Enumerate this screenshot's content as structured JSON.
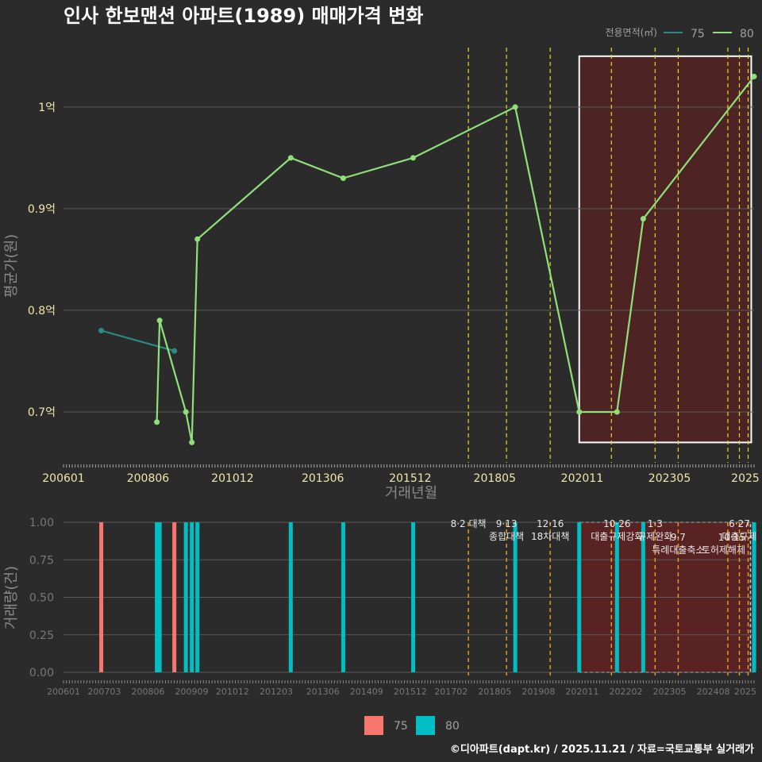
{
  "title": "인사 한보맨션 아파트(1989) 매매가격 변화",
  "caption": "©디아파트(dapt.kr) / 2025.11.21 / 자료=국토교통부 실거래가",
  "colors": {
    "background": "#2b2b2b",
    "series75_line": "#2a8a86",
    "series80_line": "#90e07a",
    "bar75": "#f8766d",
    "bar80": "#00bfc4",
    "highlight_fill": "#5a2222",
    "policy_yellow": "#e8d92a",
    "policy_orange": "#f0a020"
  },
  "chart_data": [
    {
      "type": "line",
      "title": "인사 한보맨션 아파트(1989) 매매가격 변화",
      "xlabel": "거래년월",
      "ylabel": "평균가(원)",
      "xlim": [
        2006.0,
        2025.75
      ],
      "ylim": [
        0.65,
        1.06
      ],
      "yunit": "억",
      "yticks": [
        0.7,
        0.8,
        0.9,
        1.0
      ],
      "ytick_labels": [
        "0.7억",
        "0.8억",
        "0.9억",
        "1억"
      ],
      "xtick_positions": [
        2006.0,
        2008.417,
        2010.833,
        2013.417,
        2015.917,
        2018.333,
        2020.833,
        2023.333,
        2025.5
      ],
      "xtick_labels": [
        "200601",
        "200806",
        "201012",
        "201306",
        "201512",
        "201805",
        "202011",
        "202305",
        "2025"
      ],
      "legend": {
        "title": "전용면적(㎡)",
        "position": "top-right",
        "entries": [
          "75",
          "80"
        ]
      },
      "series": [
        {
          "name": "75",
          "points": [
            [
              2007.08,
              0.78
            ],
            [
              2009.17,
              0.76
            ]
          ]
        },
        {
          "name": "80",
          "points": [
            [
              2008.67,
              0.69
            ],
            [
              2008.75,
              0.79
            ],
            [
              2009.5,
              0.7
            ],
            [
              2009.67,
              0.67
            ],
            [
              2009.83,
              0.87
            ],
            [
              2012.5,
              0.95
            ],
            [
              2014.0,
              0.93
            ],
            [
              2016.0,
              0.95
            ],
            [
              2018.92,
              1.0
            ],
            [
              2020.75,
              0.7
            ],
            [
              2021.83,
              0.7
            ],
            [
              2022.58,
              0.89
            ],
            [
              2025.75,
              1.03
            ]
          ]
        }
      ],
      "highlight_range": [
        2020.75,
        2025.67
      ],
      "policy_lines": [
        2017.58,
        2018.67,
        2019.92,
        2021.67,
        2022.92,
        2023.58,
        2025.0,
        2025.33,
        2025.58
      ]
    },
    {
      "type": "bar",
      "xlabel": "",
      "ylabel": "거래량(건)",
      "xlim": [
        2006.0,
        2025.75
      ],
      "ylim": [
        0,
        1
      ],
      "yticks": [
        0.0,
        0.25,
        0.5,
        0.75,
        1.0
      ],
      "ytick_labels": [
        "0.00",
        "0.25",
        "0.50",
        "0.75",
        "1.00"
      ],
      "xtick_positions": [
        2006.0,
        2007.167,
        2008.417,
        2009.667,
        2010.833,
        2012.083,
        2013.417,
        2014.667,
        2015.917,
        2017.083,
        2018.333,
        2019.583,
        2020.833,
        2022.083,
        2023.333,
        2024.583,
        2025.5
      ],
      "xtick_labels": [
        "200601",
        "200703",
        "200806",
        "200909",
        "201012",
        "201203",
        "201306",
        "201409",
        "201512",
        "201702",
        "201805",
        "201908",
        "202011",
        "202202",
        "202305",
        "202408",
        "2025"
      ],
      "legend": {
        "position": "bottom",
        "entries": [
          "75",
          "80"
        ]
      },
      "series": [
        {
          "name": "75",
          "bars": [
            [
              2007.08,
              1
            ],
            [
              2009.17,
              1
            ]
          ]
        },
        {
          "name": "80",
          "bars": [
            [
              2008.67,
              1
            ],
            [
              2008.75,
              1
            ],
            [
              2009.5,
              1
            ],
            [
              2009.67,
              1
            ],
            [
              2009.83,
              1
            ],
            [
              2012.5,
              1
            ],
            [
              2014.0,
              1
            ],
            [
              2016.0,
              1
            ],
            [
              2018.92,
              1
            ],
            [
              2020.75,
              1
            ],
            [
              2021.83,
              1
            ],
            [
              2022.58,
              1
            ],
            [
              2025.75,
              1
            ]
          ]
        }
      ],
      "highlight_range": [
        2020.75,
        2025.67
      ],
      "policy_lines": [
        2017.58,
        2018.67,
        2019.92,
        2021.67,
        2022.92,
        2023.58,
        2025.0,
        2025.33,
        2025.58
      ],
      "annotations": [
        {
          "x": 2017.58,
          "lines": [
            "8·2 대책"
          ],
          "anchor": "middle",
          "row": 0
        },
        {
          "x": 2018.67,
          "lines": [
            "9·13",
            "종합대책"
          ],
          "anchor": "middle",
          "row": 0
        },
        {
          "x": 2019.92,
          "lines": [
            "12·16",
            "18차대책"
          ],
          "anchor": "middle",
          "row": 0
        },
        {
          "x": 2021.83,
          "lines": [
            "10·26",
            "대출규제강화"
          ],
          "anchor": "middle",
          "row": 0
        },
        {
          "x": 2022.92,
          "lines": [
            "1·3",
            "규제완화"
          ],
          "anchor": "middle",
          "row": 0
        },
        {
          "x": 2023.58,
          "lines": [
            "9·7",
            "특례대출축소"
          ],
          "anchor": "middle",
          "row": 1
        },
        {
          "x": 2025.33,
          "lines": [
            "6·27",
            "대출규제"
          ],
          "anchor": "middle",
          "row": 0
        },
        {
          "x": 2025.5,
          "lines": [
            "10·15",
            "토허제해제"
          ],
          "anchor": "end",
          "row": 1
        }
      ]
    }
  ]
}
